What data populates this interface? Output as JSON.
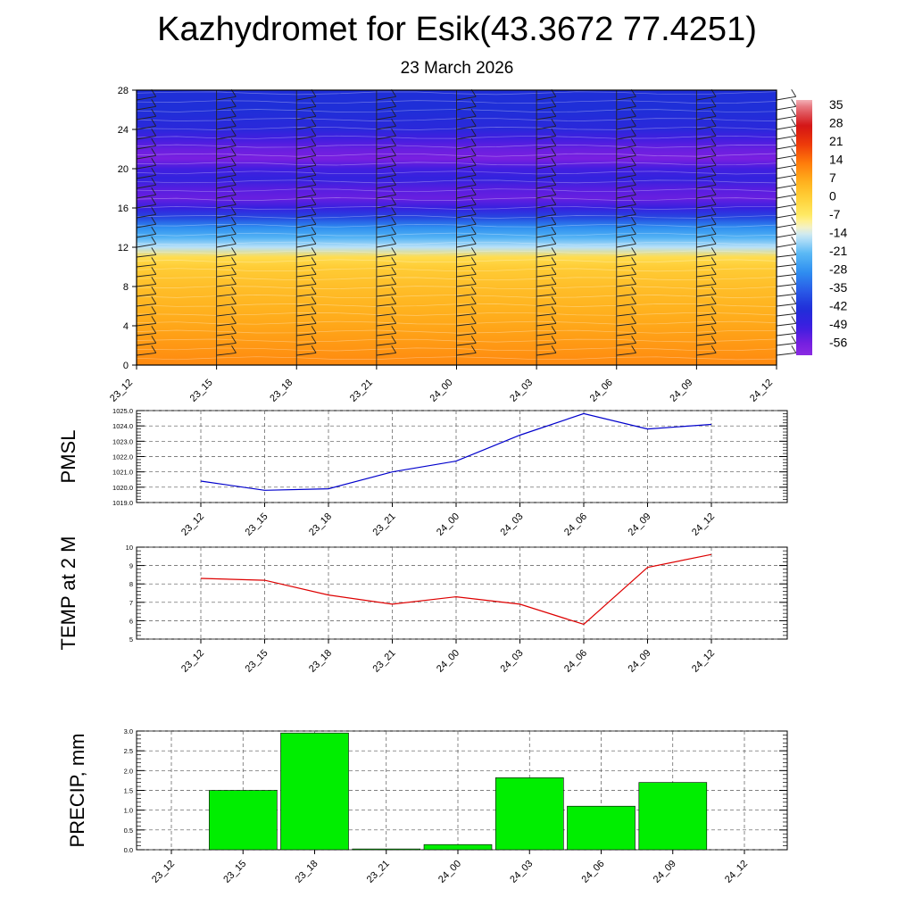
{
  "header": {
    "title": "Kazhydromet for Esik(43.3672 77.4251)",
    "subtitle": "23 March 2026"
  },
  "chart_data": [
    {
      "type": "heatmap",
      "title": "",
      "y_ticks": [
        "0",
        "4",
        "8",
        "12",
        "16",
        "20",
        "24",
        "28"
      ],
      "ylim": [
        0,
        28
      ],
      "x": [
        "23_12",
        "23_15",
        "23_18",
        "23_21",
        "24_00",
        "24_03",
        "24_06",
        "24_09",
        "24_12"
      ],
      "colorbar": {
        "labels": [
          "35",
          "28",
          "21",
          "14",
          "7",
          "0",
          "-7",
          "-14",
          "-21",
          "-28",
          "-35",
          "-42",
          "-49",
          "-56"
        ],
        "range": [
          -60,
          38
        ]
      },
      "z_profile": {
        "heights": [
          0,
          2,
          4,
          6,
          8,
          10,
          11,
          12,
          13,
          14,
          15,
          16,
          17,
          18,
          19,
          20,
          21,
          22,
          23,
          24,
          26,
          28
        ],
        "values": [
          12,
          10,
          8,
          6,
          4,
          1,
          -3,
          -15,
          -22,
          -28,
          -38,
          -48,
          -54,
          -52,
          -47,
          -50,
          -56,
          -54,
          -50,
          -45,
          -42,
          -42
        ]
      },
      "wind_barbs": true
    },
    {
      "type": "line",
      "ylabel": "PMSL",
      "x": [
        "23_12",
        "23_15",
        "23_18",
        "23_21",
        "24_00",
        "24_03",
        "24_06",
        "24_09",
        "24_12"
      ],
      "y_ticks": [
        "1019.0",
        "1020.0",
        "1021.0",
        "1022.0",
        "1023.0",
        "1024.0",
        "1025.0"
      ],
      "ylim": [
        1019,
        1025
      ],
      "series": [
        {
          "values": [
            1020.4,
            1019.8,
            1019.9,
            1021.0,
            1021.7,
            1023.4,
            1024.8,
            1023.8,
            1024.1
          ],
          "color": "#0000cc"
        }
      ],
      "grid": true
    },
    {
      "type": "line",
      "ylabel": "TEMP at 2 M",
      "x": [
        "23_12",
        "23_15",
        "23_18",
        "23_21",
        "24_00",
        "24_03",
        "24_06",
        "24_09",
        "24_12"
      ],
      "y_ticks": [
        "5",
        "6",
        "7",
        "8",
        "9",
        "10"
      ],
      "ylim": [
        5,
        10
      ],
      "series": [
        {
          "values": [
            8.3,
            8.2,
            7.4,
            6.9,
            7.3,
            6.9,
            5.8,
            8.9,
            9.6
          ],
          "color": "#dd0000"
        }
      ],
      "grid": true
    },
    {
      "type": "bar",
      "ylabel": "PRECIP, mm",
      "categories": [
        "23_12",
        "23_15",
        "23_18",
        "23_21",
        "24_00",
        "24_03",
        "24_06",
        "24_09",
        "24_12"
      ],
      "y_ticks": [
        "0.0",
        "0.5",
        "1.0",
        "1.5",
        "2.0",
        "2.5",
        "3.0"
      ],
      "ylim": [
        0,
        3
      ],
      "values": [
        0,
        1.5,
        2.95,
        0.02,
        0.13,
        1.82,
        1.1,
        1.7,
        0
      ],
      "color": "#00ee00",
      "grid": true
    }
  ]
}
